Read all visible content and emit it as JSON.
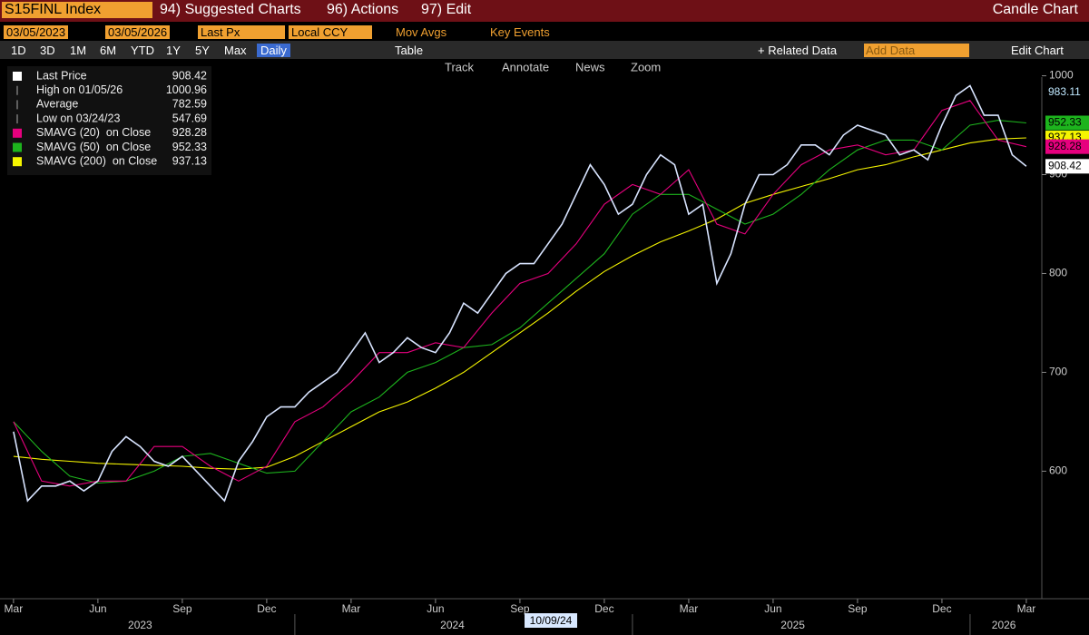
{
  "ui": {
    "ticker": "S15FINL Index",
    "menu": [
      "94) Suggested Charts",
      "96) Actions",
      "97) Edit"
    ],
    "chart_kind": "Candle Chart",
    "start_date": "03/05/2023",
    "end_date": "03/05/2026",
    "field": "Last Px",
    "currency": "Local CCY",
    "mov_avgs": "Mov Avgs",
    "key_events": "Key Events",
    "periods": [
      "1D",
      "3D",
      "1M",
      "6M",
      "YTD",
      "1Y",
      "5Y",
      "Max"
    ],
    "frequency": "Daily",
    "table": "Table",
    "related": "+ Related Data",
    "add_data": "Add Data",
    "edit_chart": "Edit Chart",
    "tools": [
      "Track",
      "Annotate",
      "News",
      "Zoom"
    ],
    "cursor_date": "10/09/24"
  },
  "chart_data": {
    "type": "line",
    "legend": [
      {
        "label": "Last Price",
        "value": 908.42,
        "color": "#ffffff"
      },
      {
        "label": "High on 01/05/26",
        "value": 1000.96
      },
      {
        "label": "Average",
        "value": 782.59
      },
      {
        "label": "Low on 03/24/23",
        "value": 547.69
      },
      {
        "label": "SMAVG (20)  on Close",
        "value": 928.28,
        "color": "#e6007e"
      },
      {
        "label": "SMAVG (50)  on Close",
        "value": 952.33,
        "color": "#1db31d"
      },
      {
        "label": "SMAVG (200)  on Close",
        "value": 937.13,
        "color": "#f5f500"
      }
    ],
    "series": [
      {
        "name": "Last Price",
        "color": "#d8e4ff",
        "x": [
          0,
          0.5,
          1,
          1.5,
          2,
          2.5,
          3,
          3.5,
          4,
          4.5,
          5,
          5.5,
          6,
          6.5,
          7,
          7.5,
          8,
          8.5,
          9,
          9.5,
          10,
          10.5,
          11,
          11.5,
          12,
          12.5,
          13,
          13.5,
          14,
          14.5,
          15,
          15.5,
          16,
          16.5,
          17,
          17.5,
          18,
          18.5,
          19,
          19.5,
          20,
          20.5,
          21,
          21.5,
          22,
          22.5,
          23,
          23.5,
          24,
          24.5,
          25,
          25.5,
          26,
          26.5,
          27,
          27.5,
          28,
          28.5,
          29,
          29.5,
          30,
          30.5,
          31,
          31.5,
          32,
          32.5,
          33,
          33.5,
          34,
          34.5,
          35,
          35.5,
          36
        ],
        "values": [
          640,
          570,
          585,
          585,
          590,
          580,
          590,
          620,
          635,
          625,
          610,
          605,
          615,
          600,
          585,
          570,
          610,
          630,
          655,
          665,
          665,
          680,
          690,
          700,
          720,
          740,
          710,
          720,
          735,
          725,
          720,
          740,
          770,
          760,
          780,
          800,
          810,
          810,
          830,
          850,
          880,
          910,
          890,
          860,
          870,
          900,
          920,
          910,
          860,
          870,
          790,
          820,
          870,
          900,
          900,
          910,
          930,
          930,
          920,
          940,
          950,
          945,
          940,
          920,
          925,
          915,
          950,
          980,
          990,
          960,
          960,
          920,
          908.42
        ]
      },
      {
        "name": "SMAVG (20)",
        "color": "#e6007e",
        "x": [
          0,
          1,
          2,
          3,
          4,
          5,
          6,
          7,
          8,
          9,
          10,
          11,
          12,
          13,
          14,
          15,
          16,
          17,
          18,
          19,
          20,
          21,
          22,
          23,
          24,
          25,
          26,
          27,
          28,
          29,
          30,
          31,
          32,
          33,
          34,
          35,
          36
        ],
        "values": [
          650,
          590,
          585,
          590,
          590,
          625,
          625,
          605,
          590,
          605,
          650,
          665,
          690,
          720,
          720,
          730,
          725,
          760,
          790,
          800,
          830,
          870,
          890,
          880,
          905,
          850,
          840,
          880,
          910,
          925,
          930,
          920,
          925,
          965,
          975,
          935,
          928.28
        ]
      },
      {
        "name": "SMAVG (50)",
        "color": "#1db31d",
        "x": [
          0,
          1,
          2,
          3,
          4,
          5,
          6,
          7,
          8,
          9,
          10,
          11,
          12,
          13,
          14,
          15,
          16,
          17,
          18,
          19,
          20,
          21,
          22,
          23,
          24,
          25,
          26,
          27,
          28,
          29,
          30,
          31,
          32,
          33,
          34,
          35,
          36
        ],
        "values": [
          650,
          620,
          595,
          588,
          590,
          600,
          615,
          618,
          608,
          598,
          600,
          630,
          660,
          675,
          700,
          710,
          725,
          728,
          745,
          770,
          795,
          820,
          860,
          880,
          880,
          865,
          850,
          860,
          880,
          905,
          925,
          935,
          935,
          925,
          950,
          955,
          952.33
        ]
      },
      {
        "name": "SMAVG (200)",
        "color": "#f5f500",
        "x": [
          0,
          1,
          2,
          3,
          4,
          5,
          6,
          7,
          8,
          9,
          10,
          11,
          12,
          13,
          14,
          15,
          16,
          17,
          18,
          19,
          20,
          21,
          22,
          23,
          24,
          25,
          26,
          27,
          28,
          29,
          30,
          31,
          32,
          33,
          34,
          35,
          36
        ],
        "values": [
          615,
          612,
          610,
          608,
          607,
          606,
          605,
          603,
          602,
          604,
          615,
          630,
          645,
          660,
          670,
          684,
          700,
          720,
          740,
          760,
          782,
          802,
          818,
          832,
          843,
          855,
          871,
          880,
          888,
          896,
          905,
          910,
          918,
          925,
          932,
          936,
          937.13
        ]
      }
    ],
    "price_tags": [
      {
        "value": 983.11,
        "color": "#bfe8ff"
      },
      {
        "value": 952.33,
        "color": "#1db31d"
      },
      {
        "value": 937.13,
        "color": "#f5f500"
      },
      {
        "value": 928.28,
        "color": "#e6007e"
      },
      {
        "value": 908.42,
        "color": "#ffffff"
      }
    ],
    "ylim": [
      471,
      1017
    ],
    "yticks": [
      600,
      700,
      800,
      900,
      1000
    ],
    "xlim": [
      -0.48,
      36.55
    ],
    "xticks": [
      {
        "value": 0,
        "label": "Mar"
      },
      {
        "value": 3,
        "label": "Jun"
      },
      {
        "value": 6,
        "label": "Sep"
      },
      {
        "value": 9,
        "label": "Dec"
      },
      {
        "value": 12,
        "label": "Mar"
      },
      {
        "value": 15,
        "label": "Jun"
      },
      {
        "value": 18,
        "label": "Sep"
      },
      {
        "value": 21,
        "label": "Dec"
      },
      {
        "value": 24,
        "label": "Mar"
      },
      {
        "value": 27,
        "label": "Jun"
      },
      {
        "value": 30,
        "label": "Sep"
      },
      {
        "value": 33,
        "label": "Dec"
      },
      {
        "value": 36,
        "label": "Mar"
      }
    ],
    "years": [
      {
        "value": 4.5,
        "label": "2023"
      },
      {
        "value": 15.6,
        "label": "2024"
      },
      {
        "value": 27.7,
        "label": "2025"
      },
      {
        "value": 35.2,
        "label": "2026"
      }
    ]
  }
}
